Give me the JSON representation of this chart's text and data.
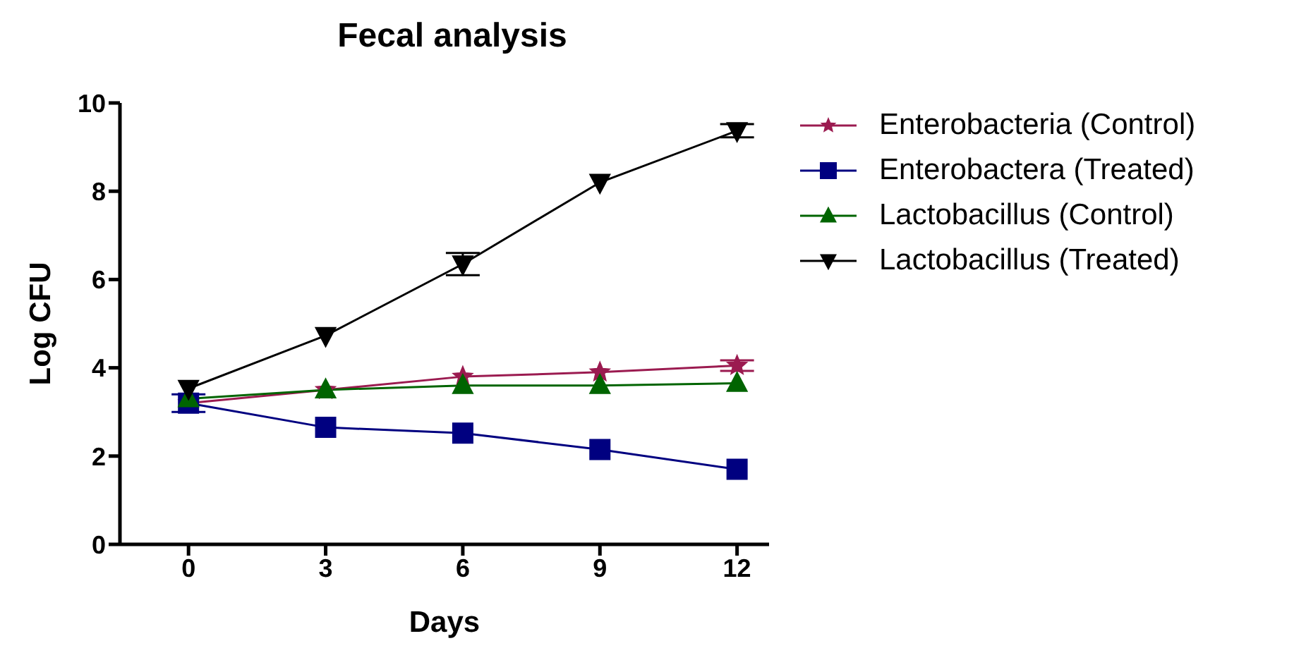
{
  "chart_data": {
    "type": "line",
    "title": "Fecal analysis",
    "xlabel": "Days",
    "ylabel": "Log CFU",
    "x": [
      0,
      3,
      6,
      9,
      12
    ],
    "xlim": [
      -1.5,
      12.7
    ],
    "xticks": [
      0,
      3,
      6,
      9,
      12
    ],
    "ylim": [
      0,
      10
    ],
    "yticks": [
      0,
      2,
      4,
      6,
      8,
      10
    ],
    "grid": false,
    "legend": "right",
    "series": [
      {
        "name": "Enterobacteria (Control)",
        "color": "#9b1b50",
        "marker": "star",
        "values": [
          3.2,
          3.5,
          3.8,
          3.9,
          4.05
        ],
        "errors": [
          null,
          null,
          null,
          null,
          0.12
        ]
      },
      {
        "name": "Enterobactera (Treated)",
        "color": "#000080",
        "marker": "square",
        "values": [
          3.2,
          2.65,
          2.52,
          2.15,
          1.7
        ],
        "errors": [
          0.2,
          null,
          null,
          null,
          null
        ]
      },
      {
        "name": "Lactobacillus (Control)",
        "color": "#006400",
        "marker": "triangle",
        "values": [
          3.3,
          3.5,
          3.6,
          3.6,
          3.65
        ],
        "errors": [
          null,
          null,
          null,
          null,
          null
        ]
      },
      {
        "name": "Lactobacillus (Treated)",
        "color": "#000000",
        "marker": "triangle-down",
        "values": [
          3.53,
          4.73,
          6.35,
          8.2,
          9.37
        ],
        "errors": [
          null,
          null,
          0.25,
          null,
          0.15
        ]
      }
    ]
  }
}
